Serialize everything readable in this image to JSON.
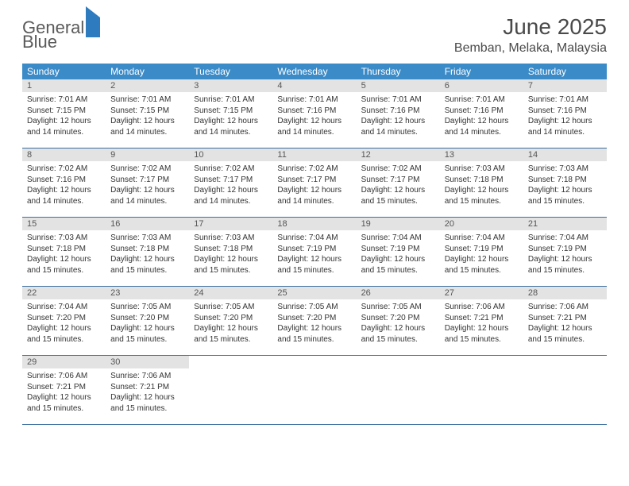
{
  "logo": {
    "word1": "General",
    "word2": "Blue"
  },
  "title": "June 2025",
  "location": "Bemban, Melaka, Malaysia",
  "colors": {
    "header_bg": "#3b8bc8",
    "header_text": "#ffffff",
    "daynum_bg": "#e3e3e3",
    "daynum_text": "#555555",
    "week_border": "#3b6fa0",
    "body_text": "#333333",
    "title_text": "#4a4a4a",
    "logo_gray": "#5a5a5a",
    "logo_blue": "#2f7bbf",
    "page_bg": "#ffffff"
  },
  "dow": [
    "Sunday",
    "Monday",
    "Tuesday",
    "Wednesday",
    "Thursday",
    "Friday",
    "Saturday"
  ],
  "type": "calendar",
  "layout": {
    "cols": 7,
    "rows": 5,
    "day_fontsize": 10,
    "dow_fontsize": 12,
    "title_fontsize": 28,
    "location_fontsize": 16
  },
  "weeks": [
    [
      {
        "n": "1",
        "sr": "Sunrise: 7:01 AM",
        "ss": "Sunset: 7:15 PM",
        "d1": "Daylight: 12 hours",
        "d2": "and 14 minutes."
      },
      {
        "n": "2",
        "sr": "Sunrise: 7:01 AM",
        "ss": "Sunset: 7:15 PM",
        "d1": "Daylight: 12 hours",
        "d2": "and 14 minutes."
      },
      {
        "n": "3",
        "sr": "Sunrise: 7:01 AM",
        "ss": "Sunset: 7:15 PM",
        "d1": "Daylight: 12 hours",
        "d2": "and 14 minutes."
      },
      {
        "n": "4",
        "sr": "Sunrise: 7:01 AM",
        "ss": "Sunset: 7:16 PM",
        "d1": "Daylight: 12 hours",
        "d2": "and 14 minutes."
      },
      {
        "n": "5",
        "sr": "Sunrise: 7:01 AM",
        "ss": "Sunset: 7:16 PM",
        "d1": "Daylight: 12 hours",
        "d2": "and 14 minutes."
      },
      {
        "n": "6",
        "sr": "Sunrise: 7:01 AM",
        "ss": "Sunset: 7:16 PM",
        "d1": "Daylight: 12 hours",
        "d2": "and 14 minutes."
      },
      {
        "n": "7",
        "sr": "Sunrise: 7:01 AM",
        "ss": "Sunset: 7:16 PM",
        "d1": "Daylight: 12 hours",
        "d2": "and 14 minutes."
      }
    ],
    [
      {
        "n": "8",
        "sr": "Sunrise: 7:02 AM",
        "ss": "Sunset: 7:16 PM",
        "d1": "Daylight: 12 hours",
        "d2": "and 14 minutes."
      },
      {
        "n": "9",
        "sr": "Sunrise: 7:02 AM",
        "ss": "Sunset: 7:17 PM",
        "d1": "Daylight: 12 hours",
        "d2": "and 14 minutes."
      },
      {
        "n": "10",
        "sr": "Sunrise: 7:02 AM",
        "ss": "Sunset: 7:17 PM",
        "d1": "Daylight: 12 hours",
        "d2": "and 14 minutes."
      },
      {
        "n": "11",
        "sr": "Sunrise: 7:02 AM",
        "ss": "Sunset: 7:17 PM",
        "d1": "Daylight: 12 hours",
        "d2": "and 14 minutes."
      },
      {
        "n": "12",
        "sr": "Sunrise: 7:02 AM",
        "ss": "Sunset: 7:17 PM",
        "d1": "Daylight: 12 hours",
        "d2": "and 15 minutes."
      },
      {
        "n": "13",
        "sr": "Sunrise: 7:03 AM",
        "ss": "Sunset: 7:18 PM",
        "d1": "Daylight: 12 hours",
        "d2": "and 15 minutes."
      },
      {
        "n": "14",
        "sr": "Sunrise: 7:03 AM",
        "ss": "Sunset: 7:18 PM",
        "d1": "Daylight: 12 hours",
        "d2": "and 15 minutes."
      }
    ],
    [
      {
        "n": "15",
        "sr": "Sunrise: 7:03 AM",
        "ss": "Sunset: 7:18 PM",
        "d1": "Daylight: 12 hours",
        "d2": "and 15 minutes."
      },
      {
        "n": "16",
        "sr": "Sunrise: 7:03 AM",
        "ss": "Sunset: 7:18 PM",
        "d1": "Daylight: 12 hours",
        "d2": "and 15 minutes."
      },
      {
        "n": "17",
        "sr": "Sunrise: 7:03 AM",
        "ss": "Sunset: 7:18 PM",
        "d1": "Daylight: 12 hours",
        "d2": "and 15 minutes."
      },
      {
        "n": "18",
        "sr": "Sunrise: 7:04 AM",
        "ss": "Sunset: 7:19 PM",
        "d1": "Daylight: 12 hours",
        "d2": "and 15 minutes."
      },
      {
        "n": "19",
        "sr": "Sunrise: 7:04 AM",
        "ss": "Sunset: 7:19 PM",
        "d1": "Daylight: 12 hours",
        "d2": "and 15 minutes."
      },
      {
        "n": "20",
        "sr": "Sunrise: 7:04 AM",
        "ss": "Sunset: 7:19 PM",
        "d1": "Daylight: 12 hours",
        "d2": "and 15 minutes."
      },
      {
        "n": "21",
        "sr": "Sunrise: 7:04 AM",
        "ss": "Sunset: 7:19 PM",
        "d1": "Daylight: 12 hours",
        "d2": "and 15 minutes."
      }
    ],
    [
      {
        "n": "22",
        "sr": "Sunrise: 7:04 AM",
        "ss": "Sunset: 7:20 PM",
        "d1": "Daylight: 12 hours",
        "d2": "and 15 minutes."
      },
      {
        "n": "23",
        "sr": "Sunrise: 7:05 AM",
        "ss": "Sunset: 7:20 PM",
        "d1": "Daylight: 12 hours",
        "d2": "and 15 minutes."
      },
      {
        "n": "24",
        "sr": "Sunrise: 7:05 AM",
        "ss": "Sunset: 7:20 PM",
        "d1": "Daylight: 12 hours",
        "d2": "and 15 minutes."
      },
      {
        "n": "25",
        "sr": "Sunrise: 7:05 AM",
        "ss": "Sunset: 7:20 PM",
        "d1": "Daylight: 12 hours",
        "d2": "and 15 minutes."
      },
      {
        "n": "26",
        "sr": "Sunrise: 7:05 AM",
        "ss": "Sunset: 7:20 PM",
        "d1": "Daylight: 12 hours",
        "d2": "and 15 minutes."
      },
      {
        "n": "27",
        "sr": "Sunrise: 7:06 AM",
        "ss": "Sunset: 7:21 PM",
        "d1": "Daylight: 12 hours",
        "d2": "and 15 minutes."
      },
      {
        "n": "28",
        "sr": "Sunrise: 7:06 AM",
        "ss": "Sunset: 7:21 PM",
        "d1": "Daylight: 12 hours",
        "d2": "and 15 minutes."
      }
    ],
    [
      {
        "n": "29",
        "sr": "Sunrise: 7:06 AM",
        "ss": "Sunset: 7:21 PM",
        "d1": "Daylight: 12 hours",
        "d2": "and 15 minutes."
      },
      {
        "n": "30",
        "sr": "Sunrise: 7:06 AM",
        "ss": "Sunset: 7:21 PM",
        "d1": "Daylight: 12 hours",
        "d2": "and 15 minutes."
      },
      null,
      null,
      null,
      null,
      null
    ]
  ]
}
